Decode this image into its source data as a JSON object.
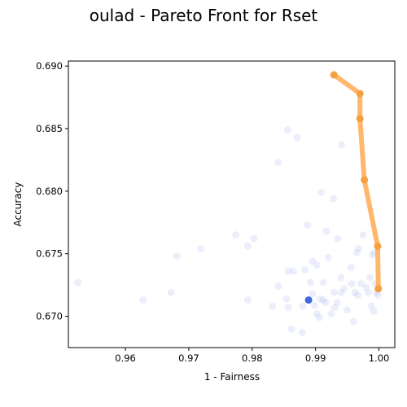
{
  "chart_data": {
    "type": "scatter",
    "title": "oulad - Pareto Front for Rset",
    "xlabel": "1 - Fairness",
    "ylabel": "Accuracy",
    "xlim": [
      0.951,
      1.0025
    ],
    "ylim": [
      0.6675,
      0.6904
    ],
    "x_ticks": [
      0.96,
      0.97,
      0.98,
      0.99,
      1.0
    ],
    "x_tick_labels": [
      "0.96",
      "0.97",
      "0.98",
      "0.99",
      "1.00"
    ],
    "y_ticks": [
      0.67,
      0.675,
      0.68,
      0.685,
      0.69
    ],
    "y_tick_labels": [
      "0.670",
      "0.675",
      "0.680",
      "0.685",
      "0.690"
    ],
    "grid": false,
    "colors": {
      "cloud": "#aab8ec",
      "highlight": "#4169e1",
      "front_line": "#ffb76b",
      "front_point": "#f5a042"
    },
    "series": [
      {
        "role": "rset-models",
        "points": [
          [
            0.9525,
            0.6727
          ],
          [
            0.9628,
            0.6713
          ],
          [
            0.9672,
            0.6719
          ],
          [
            0.9681,
            0.6748
          ],
          [
            0.9719,
            0.6754
          ],
          [
            0.9774,
            0.6765
          ],
          [
            0.9793,
            0.6756
          ],
          [
            0.9803,
            0.6762
          ],
          [
            0.9793,
            0.6713
          ],
          [
            0.9832,
            0.6708
          ],
          [
            0.9841,
            0.6823
          ],
          [
            0.9856,
            0.6849
          ],
          [
            0.9871,
            0.6843
          ],
          [
            0.9857,
            0.6736
          ],
          [
            0.9865,
            0.6736
          ],
          [
            0.9841,
            0.6724
          ],
          [
            0.9854,
            0.6714
          ],
          [
            0.9857,
            0.6707
          ],
          [
            0.9862,
            0.669
          ],
          [
            0.9879,
            0.6687
          ],
          [
            0.988,
            0.6708
          ],
          [
            0.9883,
            0.6737
          ],
          [
            0.9887,
            0.6773
          ],
          [
            0.9895,
            0.6744
          ],
          [
            0.9902,
            0.6741
          ],
          [
            0.9912,
            0.6727
          ],
          [
            0.9917,
            0.6768
          ],
          [
            0.992,
            0.6747
          ],
          [
            0.9928,
            0.6794
          ],
          [
            0.9909,
            0.6799
          ],
          [
            0.9935,
            0.6762
          ],
          [
            0.9941,
            0.6837
          ],
          [
            0.9892,
            0.6727
          ],
          [
            0.9895,
            0.6718
          ],
          [
            0.9898,
            0.6709
          ],
          [
            0.9902,
            0.6702
          ],
          [
            0.9907,
            0.6714
          ],
          [
            0.9912,
            0.6713
          ],
          [
            0.9916,
            0.6711
          ],
          [
            0.9925,
            0.6702
          ],
          [
            0.9929,
            0.6719
          ],
          [
            0.9934,
            0.6711
          ],
          [
            0.994,
            0.6719
          ],
          [
            0.994,
            0.6731
          ],
          [
            0.995,
            0.6705
          ],
          [
            0.9956,
            0.6739
          ],
          [
            0.996,
            0.6696
          ],
          [
            0.9962,
            0.6719
          ],
          [
            0.9965,
            0.6751
          ],
          [
            0.9968,
            0.6754
          ],
          [
            0.9967,
            0.6717
          ],
          [
            0.9972,
            0.6726
          ],
          [
            0.9975,
            0.6765
          ],
          [
            0.998,
            0.6723
          ],
          [
            0.9983,
            0.6719
          ],
          [
            0.9986,
            0.6731
          ],
          [
            0.9988,
            0.6708
          ],
          [
            0.999,
            0.6749
          ],
          [
            0.9992,
            0.6704
          ],
          [
            0.9993,
            0.6751
          ],
          [
            0.9994,
            0.6726
          ],
          [
            0.9996,
            0.6719
          ],
          [
            0.9998,
            0.6717
          ],
          [
            0.9906,
            0.6699
          ],
          [
            0.9945,
            0.6722
          ],
          [
            0.9957,
            0.6726
          ],
          [
            0.993,
            0.6707
          ]
        ]
      },
      {
        "role": "highlighted-model",
        "points": [
          [
            0.9889,
            0.6713
          ]
        ]
      },
      {
        "role": "pareto-front",
        "points": [
          [
            0.9929,
            0.6893
          ],
          [
            0.997,
            0.6878
          ],
          [
            0.997,
            0.6858
          ],
          [
            0.9977,
            0.6809
          ],
          [
            0.9998,
            0.6756
          ],
          [
            0.9999,
            0.6722
          ]
        ]
      }
    ]
  }
}
